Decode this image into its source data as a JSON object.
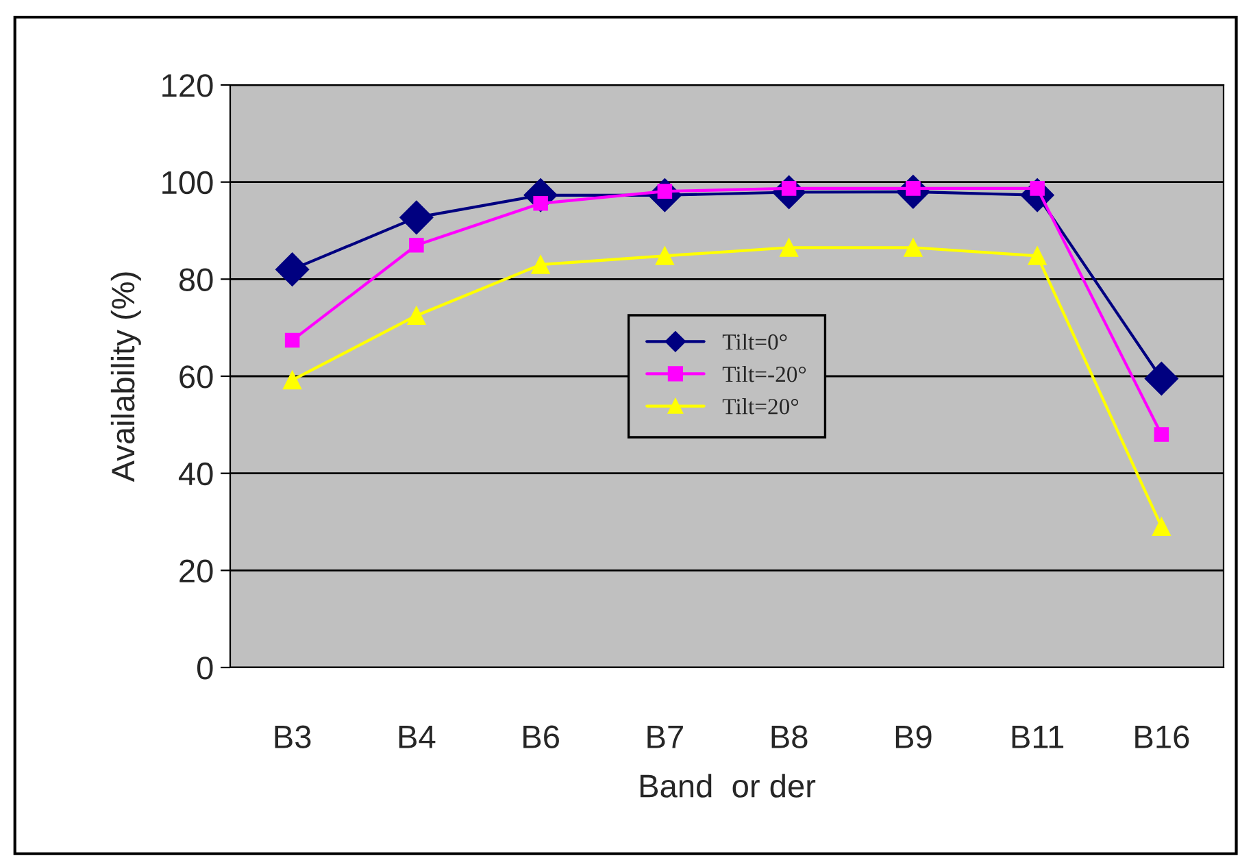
{
  "chart_data": {
    "type": "line",
    "xlabel": "Band  or der",
    "ylabel": "Availability (%)",
    "categories": [
      "B3",
      "B4",
      "B6",
      "B7",
      "B8",
      "B9",
      "B11",
      "B16"
    ],
    "series": [
      {
        "name": "Tilt=0°",
        "color": "#000080",
        "marker": "diamond",
        "values": [
          82,
          92.7,
          97.3,
          97.3,
          97.9,
          98,
          97.3,
          59.5
        ]
      },
      {
        "name": "Tilt=-20°",
        "color": "#ff00ff",
        "marker": "square",
        "values": [
          67.4,
          87,
          95.6,
          98.1,
          98.7,
          98.7,
          98.7,
          48
        ]
      },
      {
        "name": "Tilt=20°",
        "color": "#ffff00",
        "marker": "triangle",
        "values": [
          59.2,
          72.5,
          83,
          84.8,
          86.5,
          86.5,
          84.8,
          29
        ]
      }
    ],
    "ylim": [
      0,
      120
    ],
    "yticks": [
      0,
      20,
      40,
      60,
      80,
      100,
      120
    ],
    "grid": "y",
    "legend": "center",
    "line_style": "solid"
  }
}
